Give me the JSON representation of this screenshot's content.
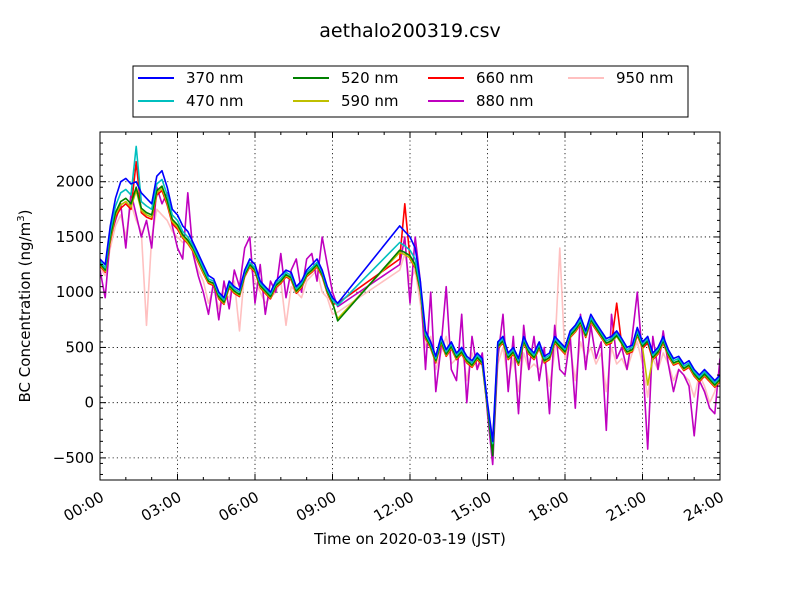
{
  "chart_data": {
    "type": "line",
    "title": "aethalo200319.csv",
    "xlabel": "Time on 2020-03-19 (JST)",
    "ylabel": "BC Concentration (ng/m",
    "ylabel_sup": "3",
    "ylabel_close": ")",
    "xlim": [
      0,
      24
    ],
    "ylim": [
      -700,
      2450
    ],
    "x_ticks": [
      0,
      3,
      6,
      9,
      12,
      15,
      18,
      21,
      24
    ],
    "x_tick_labels": [
      "00:00",
      "03:00",
      "06:00",
      "09:00",
      "12:00",
      "15:00",
      "18:00",
      "21:00",
      "24:00"
    ],
    "y_ticks": [
      -500,
      0,
      500,
      1000,
      1500,
      2000
    ],
    "y_tick_labels": [
      "−500",
      "0",
      "500",
      "1000",
      "1500",
      "2000"
    ],
    "grid": true,
    "legend_position": "top-center",
    "legend_columns": 4,
    "x": [
      0.0,
      0.2,
      0.4,
      0.6,
      0.8,
      1.0,
      1.2,
      1.4,
      1.6,
      1.8,
      2.0,
      2.2,
      2.4,
      2.6,
      2.8,
      3.0,
      3.2,
      3.4,
      3.6,
      3.8,
      4.0,
      4.2,
      4.4,
      4.6,
      4.8,
      5.0,
      5.2,
      5.4,
      5.6,
      5.8,
      6.0,
      6.2,
      6.4,
      6.6,
      6.8,
      7.0,
      7.2,
      7.4,
      7.6,
      7.8,
      8.0,
      8.2,
      8.4,
      8.6,
      8.8,
      9.0,
      9.2,
      11.6,
      11.8,
      12.0,
      12.2,
      12.4,
      12.6,
      12.8,
      13.0,
      13.2,
      13.4,
      13.6,
      13.8,
      14.0,
      14.2,
      14.4,
      14.6,
      14.8,
      15.0,
      15.2,
      15.4,
      15.6,
      15.8,
      16.0,
      16.2,
      16.4,
      16.6,
      16.8,
      17.0,
      17.2,
      17.4,
      17.6,
      17.8,
      18.0,
      18.2,
      18.4,
      18.6,
      18.8,
      19.0,
      19.2,
      19.4,
      19.6,
      19.8,
      20.0,
      20.2,
      20.4,
      20.6,
      20.8,
      21.0,
      21.2,
      21.4,
      21.6,
      21.8,
      22.0,
      22.2,
      22.4,
      22.6,
      22.8,
      23.0,
      23.2,
      23.4,
      23.6,
      23.8,
      24.0
    ],
    "series": [
      {
        "name": "370 nm",
        "color": "#0000ff",
        "values": [
          1300,
          1250,
          1600,
          1850,
          2000,
          2030,
          1980,
          2000,
          1900,
          1850,
          1800,
          2050,
          2100,
          1950,
          1750,
          1700,
          1600,
          1550,
          1450,
          1350,
          1250,
          1150,
          1120,
          1000,
          950,
          1100,
          1050,
          1020,
          1200,
          1300,
          1250,
          1100,
          1050,
          1000,
          1100,
          1150,
          1200,
          1180,
          1050,
          1100,
          1200,
          1250,
          1300,
          1200,
          1050,
          950,
          900,
          1600,
          1550,
          1500,
          1400,
          1100,
          650,
          550,
          420,
          600,
          480,
          550,
          450,
          500,
          420,
          380,
          450,
          400,
          0,
          -350,
          550,
          600,
          450,
          500,
          400,
          600,
          500,
          450,
          550,
          420,
          450,
          600,
          550,
          500,
          650,
          700,
          780,
          650,
          800,
          720,
          650,
          580,
          600,
          650,
          580,
          500,
          520,
          680,
          550,
          600,
          450,
          500,
          600,
          480,
          400,
          420,
          350,
          380,
          300,
          250,
          300,
          250,
          200,
          250
        ]
      },
      {
        "name": "470 nm",
        "color": "#00bfbf",
        "values": [
          1280,
          1220,
          1550,
          1780,
          1900,
          1930,
          1880,
          2320,
          1820,
          1780,
          1750,
          1980,
          2020,
          1880,
          1700,
          1650,
          1550,
          1500,
          1420,
          1320,
          1220,
          1120,
          1100,
          980,
          930,
          1080,
          1030,
          1000,
          1180,
          1270,
          1220,
          1080,
          1030,
          980,
          1080,
          1120,
          1180,
          1150,
          1030,
          1080,
          1180,
          1220,
          1270,
          1180,
          1030,
          930,
          880,
          1450,
          1420,
          1380,
          1300,
          1050,
          620,
          530,
          400,
          580,
          460,
          530,
          430,
          480,
          400,
          360,
          430,
          380,
          -20,
          -370,
          530,
          580,
          430,
          480,
          380,
          580,
          480,
          430,
          530,
          400,
          430,
          580,
          530,
          480,
          630,
          680,
          750,
          630,
          770,
          700,
          630,
          560,
          580,
          630,
          560,
          480,
          500,
          650,
          530,
          580,
          430,
          480,
          580,
          460,
          380,
          400,
          330,
          360,
          280,
          230,
          280,
          230,
          180,
          230
        ]
      },
      {
        "name": "520 nm",
        "color": "#008000",
        "values": [
          1260,
          1200,
          1500,
          1720,
          1820,
          1850,
          1800,
          1950,
          1760,
          1720,
          1700,
          1920,
          1960,
          1830,
          1660,
          1610,
          1520,
          1470,
          1400,
          1300,
          1200,
          1100,
          1080,
          960,
          910,
          1060,
          1010,
          980,
          1160,
          1250,
          1200,
          1060,
          1010,
          960,
          1060,
          1100,
          1160,
          1130,
          1010,
          1060,
          1160,
          1200,
          1250,
          1160,
          1010,
          910,
          740,
          1380,
          1360,
          1330,
          1250,
          1020,
          600,
          510,
          380,
          560,
          440,
          510,
          410,
          460,
          380,
          340,
          410,
          360,
          -40,
          -480,
          510,
          560,
          410,
          460,
          360,
          560,
          460,
          410,
          510,
          380,
          410,
          560,
          510,
          460,
          610,
          660,
          730,
          610,
          750,
          680,
          610,
          540,
          560,
          610,
          540,
          460,
          480,
          630,
          510,
          560,
          410,
          460,
          560,
          440,
          360,
          380,
          310,
          340,
          260,
          210,
          260,
          210,
          160,
          210
        ]
      },
      {
        "name": "590 nm",
        "color": "#bfbf00",
        "values": [
          1250,
          1190,
          1480,
          1700,
          1790,
          1820,
          1770,
          1920,
          1740,
          1700,
          1680,
          1900,
          1940,
          1810,
          1640,
          1590,
          1500,
          1450,
          1380,
          1280,
          1180,
          1090,
          1070,
          950,
          900,
          1050,
          1000,
          970,
          1150,
          1240,
          1190,
          1050,
          1000,
          950,
          1050,
          1090,
          1150,
          1120,
          1000,
          1050,
          1150,
          1190,
          1240,
          1150,
          1000,
          900,
          760,
          1360,
          1340,
          1310,
          1230,
          1010,
          590,
          500,
          370,
          550,
          430,
          500,
          400,
          450,
          370,
          330,
          400,
          350,
          -50,
          -460,
          500,
          550,
          400,
          450,
          350,
          550,
          450,
          400,
          500,
          370,
          400,
          550,
          500,
          450,
          600,
          650,
          720,
          600,
          740,
          670,
          600,
          530,
          550,
          600,
          530,
          450,
          470,
          620,
          500,
          160,
          400,
          450,
          550,
          430,
          350,
          370,
          300,
          330,
          250,
          200,
          250,
          200,
          150,
          200
        ]
      },
      {
        "name": "660 nm",
        "color": "#ff0000",
        "values": [
          1240,
          1180,
          1460,
          1680,
          1760,
          1800,
          1750,
          2180,
          1720,
          1680,
          1660,
          1880,
          1920,
          1790,
          1620,
          1570,
          1490,
          1440,
          1370,
          1270,
          1170,
          1080,
          1060,
          940,
          890,
          1040,
          990,
          960,
          1140,
          1230,
          1180,
          1040,
          990,
          940,
          1040,
          1080,
          1140,
          1110,
          990,
          1040,
          1140,
          1180,
          1230,
          1140,
          990,
          890,
          900,
          1300,
          1800,
          1300,
          1220,
          1000,
          580,
          490,
          360,
          540,
          420,
          490,
          390,
          440,
          360,
          320,
          390,
          340,
          -60,
          -400,
          490,
          540,
          390,
          440,
          340,
          540,
          440,
          390,
          490,
          360,
          390,
          540,
          490,
          440,
          590,
          640,
          710,
          590,
          730,
          660,
          590,
          520,
          540,
          900,
          520,
          440,
          460,
          610,
          490,
          540,
          390,
          440,
          540,
          420,
          340,
          360,
          290,
          320,
          240,
          190,
          240,
          190,
          140,
          190
        ]
      },
      {
        "name": "880 nm",
        "color": "#bf00bf",
        "values": [
          1200,
          950,
          1500,
          1650,
          1800,
          1400,
          1900,
          1700,
          1500,
          1650,
          1400,
          1950,
          1800,
          1900,
          1600,
          1400,
          1300,
          1900,
          1350,
          1150,
          1000,
          800,
          1100,
          750,
          1100,
          850,
          1200,
          1050,
          1400,
          1500,
          900,
          1250,
          800,
          1100,
          1000,
          1350,
          950,
          1200,
          1300,
          1000,
          1300,
          1350,
          1100,
          1500,
          1250,
          1000,
          870,
          1250,
          1500,
          900,
          1500,
          1100,
          300,
          1000,
          100,
          500,
          1050,
          300,
          200,
          800,
          0,
          600,
          300,
          450,
          -100,
          -560,
          400,
          800,
          100,
          600,
          -100,
          700,
          300,
          600,
          200,
          500,
          -100,
          700,
          300,
          250,
          600,
          -50,
          800,
          300,
          700,
          400,
          550,
          -250,
          800,
          400,
          500,
          300,
          600,
          1000,
          400,
          -420,
          600,
          300,
          650,
          350,
          100,
          300,
          250,
          150,
          -300,
          200,
          100,
          -50,
          -100,
          400
        ]
      },
      {
        "name": "950 nm",
        "color": "#ffc0c0",
        "values": [
          1220,
          1150,
          1400,
          1600,
          1700,
          1500,
          1800,
          1650,
          1550,
          700,
          1500,
          1750,
          1700,
          1650,
          1550,
          1500,
          1450,
          1500,
          1350,
          1200,
          1100,
          900,
          1050,
          850,
          1000,
          950,
          1100,
          650,
          1200,
          1250,
          1100,
          1000,
          900,
          950,
          1000,
          1100,
          700,
          1050,
          1000,
          950,
          1100,
          1150,
          1200,
          1000,
          950,
          800,
          820,
          1200,
          1350,
          1100,
          1200,
          900,
          500,
          600,
          300,
          450,
          600,
          350,
          400,
          500,
          200,
          450,
          300,
          400,
          -50,
          -300,
          350,
          500,
          200,
          400,
          100,
          450,
          300,
          350,
          300,
          400,
          150,
          450,
          1400,
          400,
          500,
          200,
          550,
          400,
          500,
          350,
          450,
          100,
          500,
          350,
          400,
          300,
          450,
          550,
          350,
          50,
          400,
          300,
          450,
          350,
          200,
          300,
          250,
          200,
          50,
          250,
          150,
          0,
          100,
          300
        ]
      }
    ]
  }
}
